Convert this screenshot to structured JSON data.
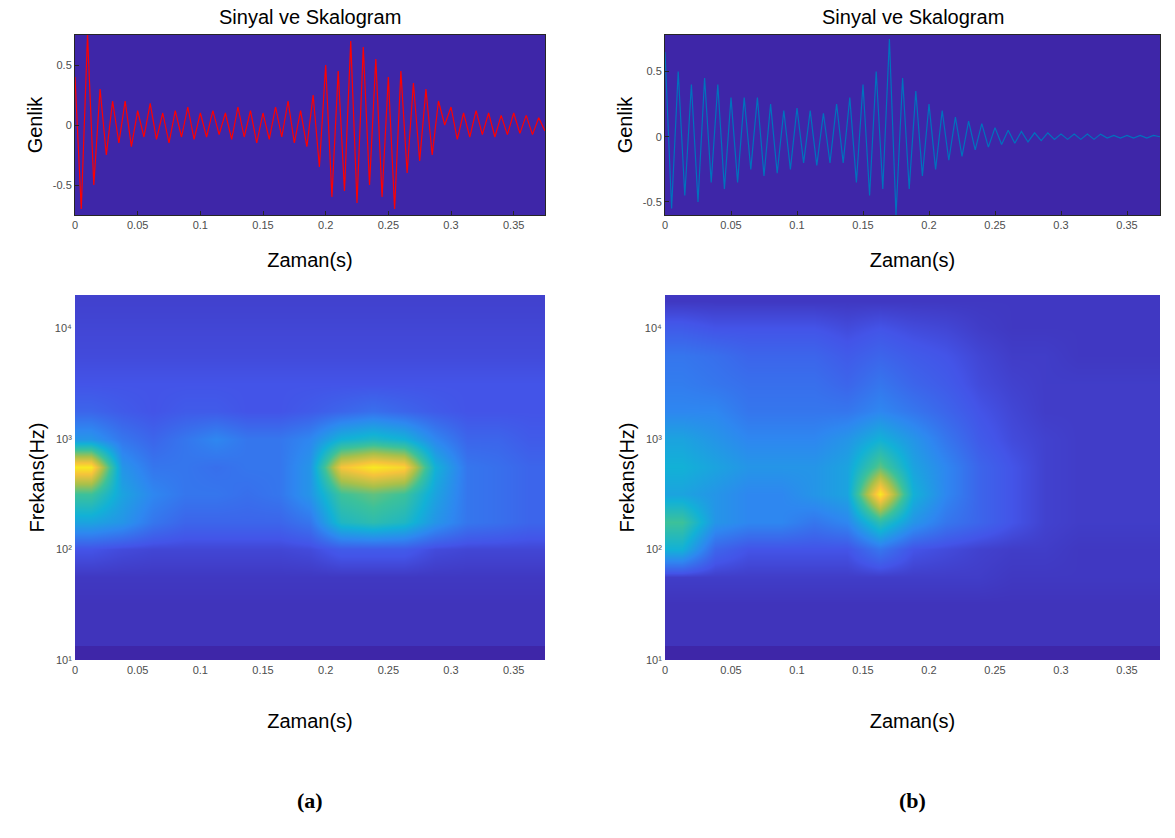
{
  "chart_data": [
    {
      "type": "line",
      "title": "Sinyal ve Skalogram",
      "xlabel": "Zaman(s)",
      "ylabel": "Genlik",
      "color": "#ff0000",
      "grid": false,
      "xlim": [
        0,
        0.375
      ],
      "ylim": [
        -0.75,
        0.75
      ],
      "xticks": [
        0,
        0.05,
        0.1,
        0.15,
        0.2,
        0.25,
        0.3,
        0.35
      ],
      "yticks": [
        -0.5,
        0,
        0.5
      ],
      "x": [
        0,
        0.005,
        0.01,
        0.015,
        0.02,
        0.025,
        0.03,
        0.035,
        0.04,
        0.045,
        0.05,
        0.055,
        0.06,
        0.065,
        0.07,
        0.075,
        0.08,
        0.085,
        0.09,
        0.095,
        0.1,
        0.105,
        0.11,
        0.115,
        0.12,
        0.125,
        0.13,
        0.135,
        0.14,
        0.145,
        0.15,
        0.155,
        0.16,
        0.165,
        0.17,
        0.175,
        0.18,
        0.185,
        0.19,
        0.195,
        0.2,
        0.205,
        0.21,
        0.215,
        0.22,
        0.225,
        0.23,
        0.235,
        0.24,
        0.245,
        0.25,
        0.255,
        0.26,
        0.265,
        0.27,
        0.275,
        0.28,
        0.285,
        0.29,
        0.295,
        0.3,
        0.305,
        0.31,
        0.315,
        0.32,
        0.325,
        0.33,
        0.335,
        0.34,
        0.345,
        0.35,
        0.355,
        0.36,
        0.365,
        0.37,
        0.375
      ],
      "values": [
        0.4,
        -0.7,
        0.75,
        -0.5,
        0.3,
        -0.25,
        0.2,
        -0.15,
        0.2,
        -0.18,
        0.12,
        -0.1,
        0.18,
        -0.12,
        0.1,
        -0.15,
        0.12,
        -0.1,
        0.15,
        -0.12,
        0.1,
        -0.1,
        0.12,
        -0.08,
        0.1,
        -0.12,
        0.15,
        -0.1,
        0.12,
        -0.15,
        0.1,
        -0.12,
        0.15,
        -0.1,
        0.2,
        -0.15,
        0.12,
        -0.18,
        0.25,
        -0.35,
        0.5,
        -0.6,
        0.45,
        -0.55,
        0.7,
        -0.65,
        0.65,
        -0.5,
        0.55,
        -0.6,
        0.4,
        -0.7,
        0.45,
        -0.4,
        0.35,
        -0.3,
        0.3,
        -0.25,
        0.2,
        0,
        0.15,
        -0.12,
        0.1,
        -0.1,
        0.12,
        -0.08,
        0.1,
        -0.1,
        0.08,
        -0.08,
        0.1,
        -0.07,
        0.08,
        -0.08,
        0.06,
        -0.05
      ]
    },
    {
      "type": "heatmap",
      "xlabel": "Zaman(s)",
      "ylabel": "Frekans(Hz)",
      "log": "y",
      "grid": false,
      "annotations": [
        "(a)"
      ],
      "xlim": [
        0,
        0.375
      ],
      "ylim": [
        10,
        20000
      ],
      "xticks": [
        0,
        0.05,
        0.1,
        0.15,
        0.2,
        0.25,
        0.3,
        0.35
      ],
      "yticks": [
        {
          "value": 10,
          "label": "10¹"
        },
        {
          "value": 100,
          "label": "10²"
        },
        {
          "value": 1000,
          "label": "10³"
        },
        {
          "value": 10000,
          "label": "10⁴"
        }
      ],
      "zlim": [
        0,
        1
      ],
      "x": [
        0.0125,
        0.0375,
        0.0625,
        0.0875,
        0.1125,
        0.1375,
        0.1625,
        0.1875,
        0.2125,
        0.2375,
        0.2625,
        0.2875,
        0.3125,
        0.3375,
        0.3625
      ],
      "y": [
        18,
        32,
        56,
        100,
        178,
        316,
        562,
        1000,
        1778,
        3162,
        5623,
        10000,
        17783
      ],
      "z": [
        [
          0.03,
          0.03,
          0.03,
          0.03,
          0.03,
          0.03,
          0.03,
          0.03,
          0.03,
          0.03,
          0.03,
          0.03,
          0.03,
          0.03,
          0.03
        ],
        [
          0.03,
          0.03,
          0.03,
          0.03,
          0.03,
          0.03,
          0.03,
          0.03,
          0.03,
          0.03,
          0.03,
          0.03,
          0.03,
          0.03,
          0.03
        ],
        [
          0.04,
          0.04,
          0.04,
          0.04,
          0.04,
          0.04,
          0.04,
          0.04,
          0.04,
          0.04,
          0.04,
          0.04,
          0.04,
          0.04,
          0.04
        ],
        [
          0.1,
          0.08,
          0.07,
          0.07,
          0.07,
          0.07,
          0.07,
          0.08,
          0.12,
          0.12,
          0.12,
          0.08,
          0.07,
          0.07,
          0.07
        ],
        [
          0.35,
          0.3,
          0.2,
          0.15,
          0.15,
          0.15,
          0.15,
          0.2,
          0.45,
          0.5,
          0.45,
          0.3,
          0.2,
          0.18,
          0.15
        ],
        [
          0.55,
          0.35,
          0.25,
          0.2,
          0.2,
          0.18,
          0.2,
          0.3,
          0.55,
          0.6,
          0.55,
          0.35,
          0.2,
          0.18,
          0.15
        ],
        [
          0.95,
          0.3,
          0.2,
          0.2,
          0.18,
          0.2,
          0.2,
          0.3,
          0.85,
          0.95,
          0.9,
          0.4,
          0.2,
          0.18,
          0.15
        ],
        [
          0.3,
          0.2,
          0.15,
          0.2,
          0.25,
          0.2,
          0.2,
          0.25,
          0.4,
          0.45,
          0.4,
          0.25,
          0.15,
          0.15,
          0.12
        ],
        [
          0.15,
          0.12,
          0.1,
          0.12,
          0.12,
          0.1,
          0.1,
          0.12,
          0.15,
          0.18,
          0.15,
          0.12,
          0.1,
          0.1,
          0.1
        ],
        [
          0.1,
          0.1,
          0.1,
          0.1,
          0.1,
          0.1,
          0.1,
          0.1,
          0.1,
          0.1,
          0.1,
          0.1,
          0.1,
          0.1,
          0.1
        ],
        [
          0.08,
          0.08,
          0.08,
          0.08,
          0.08,
          0.08,
          0.08,
          0.08,
          0.08,
          0.08,
          0.08,
          0.08,
          0.08,
          0.08,
          0.08
        ],
        [
          0.07,
          0.07,
          0.07,
          0.07,
          0.07,
          0.07,
          0.07,
          0.07,
          0.07,
          0.07,
          0.07,
          0.07,
          0.07,
          0.07,
          0.07
        ],
        [
          0.06,
          0.06,
          0.06,
          0.06,
          0.06,
          0.06,
          0.06,
          0.06,
          0.06,
          0.06,
          0.06,
          0.06,
          0.06,
          0.06,
          0.06
        ]
      ]
    },
    {
      "type": "line",
      "title": "Sinyal ve Skalogram",
      "xlabel": "Zaman(s)",
      "ylabel": "Genlik",
      "color": "#0072bd",
      "grid": false,
      "xlim": [
        0,
        0.375
      ],
      "ylim": [
        -0.6,
        0.78
      ],
      "xticks": [
        0,
        0.05,
        0.1,
        0.15,
        0.2,
        0.25,
        0.3,
        0.35
      ],
      "yticks": [
        -0.5,
        0,
        0.5
      ],
      "x": [
        0,
        0.005,
        0.01,
        0.015,
        0.02,
        0.025,
        0.03,
        0.035,
        0.04,
        0.045,
        0.05,
        0.055,
        0.06,
        0.065,
        0.07,
        0.075,
        0.08,
        0.085,
        0.09,
        0.095,
        0.1,
        0.105,
        0.11,
        0.115,
        0.12,
        0.125,
        0.13,
        0.135,
        0.14,
        0.145,
        0.15,
        0.155,
        0.16,
        0.165,
        0.17,
        0.175,
        0.18,
        0.185,
        0.19,
        0.195,
        0.2,
        0.205,
        0.21,
        0.215,
        0.22,
        0.225,
        0.23,
        0.235,
        0.24,
        0.245,
        0.25,
        0.255,
        0.26,
        0.265,
        0.27,
        0.275,
        0.28,
        0.285,
        0.29,
        0.295,
        0.3,
        0.305,
        0.31,
        0.315,
        0.32,
        0.325,
        0.33,
        0.335,
        0.34,
        0.345,
        0.35,
        0.355,
        0.36,
        0.365,
        0.37,
        0.375
      ],
      "values": [
        0.65,
        -0.55,
        0.5,
        -0.45,
        0.4,
        -0.5,
        0.45,
        -0.35,
        0.4,
        -0.4,
        0.3,
        -0.35,
        0.3,
        -0.25,
        0.3,
        -0.3,
        0.25,
        -0.28,
        0.2,
        -0.25,
        0.22,
        -0.2,
        0.2,
        -0.22,
        0.18,
        -0.2,
        0.25,
        -0.2,
        0.3,
        -0.35,
        0.4,
        -0.45,
        0.5,
        -0.4,
        0.75,
        -0.6,
        0.45,
        -0.4,
        0.35,
        -0.3,
        0.25,
        -0.25,
        0.2,
        -0.18,
        0.15,
        -0.15,
        0.12,
        -0.1,
        0.1,
        -0.08,
        0.07,
        -0.06,
        0.05,
        -0.05,
        0.04,
        -0.04,
        0.03,
        -0.03,
        0.03,
        -0.02,
        0.02,
        -0.02,
        0.02,
        -0.02,
        0.02,
        -0.02,
        0.02,
        -0.01,
        0.01,
        -0.01,
        0.01,
        -0.01,
        0.01,
        -0.01,
        0.01,
        0
      ]
    },
    {
      "type": "heatmap",
      "xlabel": "Zaman(s)",
      "ylabel": "Frekans(Hz)",
      "log": "y",
      "grid": false,
      "annotations": [
        "(b)"
      ],
      "xlim": [
        0,
        0.375
      ],
      "ylim": [
        10,
        20000
      ],
      "xticks": [
        0,
        0.05,
        0.1,
        0.15,
        0.2,
        0.25,
        0.3,
        0.35
      ],
      "yticks": [
        {
          "value": 10,
          "label": "10¹"
        },
        {
          "value": 100,
          "label": "10²"
        },
        {
          "value": 1000,
          "label": "10³"
        },
        {
          "value": 10000,
          "label": "10⁴"
        }
      ],
      "zlim": [
        0,
        1
      ],
      "x": [
        0.0125,
        0.0375,
        0.0625,
        0.0875,
        0.1125,
        0.1375,
        0.1625,
        0.1875,
        0.2125,
        0.2375,
        0.2625,
        0.2875,
        0.3125,
        0.3375,
        0.3625
      ],
      "y": [
        18,
        32,
        56,
        100,
        178,
        316,
        562,
        1000,
        1778,
        3162,
        5623,
        10000,
        17783
      ],
      "z": [
        [
          0.03,
          0.03,
          0.03,
          0.03,
          0.03,
          0.03,
          0.03,
          0.03,
          0.03,
          0.03,
          0.03,
          0.03,
          0.03,
          0.03,
          0.03
        ],
        [
          0.03,
          0.03,
          0.03,
          0.03,
          0.03,
          0.03,
          0.03,
          0.03,
          0.03,
          0.03,
          0.03,
          0.03,
          0.03,
          0.03,
          0.03
        ],
        [
          0.05,
          0.05,
          0.05,
          0.05,
          0.05,
          0.05,
          0.05,
          0.05,
          0.05,
          0.05,
          0.04,
          0.04,
          0.04,
          0.04,
          0.04
        ],
        [
          0.4,
          0.15,
          0.1,
          0.1,
          0.1,
          0.1,
          0.2,
          0.1,
          0.08,
          0.06,
          0.05,
          0.05,
          0.04,
          0.04,
          0.04
        ],
        [
          0.55,
          0.3,
          0.25,
          0.25,
          0.2,
          0.25,
          0.5,
          0.3,
          0.2,
          0.15,
          0.1,
          0.06,
          0.05,
          0.05,
          0.05
        ],
        [
          0.35,
          0.3,
          0.25,
          0.25,
          0.3,
          0.35,
          0.95,
          0.4,
          0.25,
          0.15,
          0.1,
          0.06,
          0.05,
          0.05,
          0.05
        ],
        [
          0.4,
          0.35,
          0.3,
          0.3,
          0.3,
          0.35,
          0.6,
          0.35,
          0.25,
          0.15,
          0.1,
          0.06,
          0.05,
          0.05,
          0.05
        ],
        [
          0.35,
          0.3,
          0.25,
          0.25,
          0.25,
          0.3,
          0.4,
          0.3,
          0.2,
          0.12,
          0.08,
          0.06,
          0.05,
          0.05,
          0.05
        ],
        [
          0.25,
          0.25,
          0.2,
          0.2,
          0.2,
          0.2,
          0.25,
          0.2,
          0.15,
          0.1,
          0.07,
          0.05,
          0.05,
          0.05,
          0.05
        ],
        [
          0.22,
          0.2,
          0.18,
          0.18,
          0.18,
          0.15,
          0.2,
          0.15,
          0.12,
          0.08,
          0.06,
          0.05,
          0.05,
          0.05,
          0.05
        ],
        [
          0.2,
          0.18,
          0.15,
          0.15,
          0.15,
          0.12,
          0.15,
          0.12,
          0.1,
          0.07,
          0.05,
          0.05,
          0.04,
          0.04,
          0.04
        ],
        [
          0.12,
          0.1,
          0.1,
          0.1,
          0.1,
          0.08,
          0.1,
          0.08,
          0.07,
          0.05,
          0.04,
          0.04,
          0.04,
          0.04,
          0.04
        ],
        [
          0.04,
          0.04,
          0.04,
          0.04,
          0.04,
          0.04,
          0.04,
          0.04,
          0.04,
          0.04,
          0.04,
          0.04,
          0.04,
          0.04,
          0.04
        ]
      ]
    }
  ]
}
